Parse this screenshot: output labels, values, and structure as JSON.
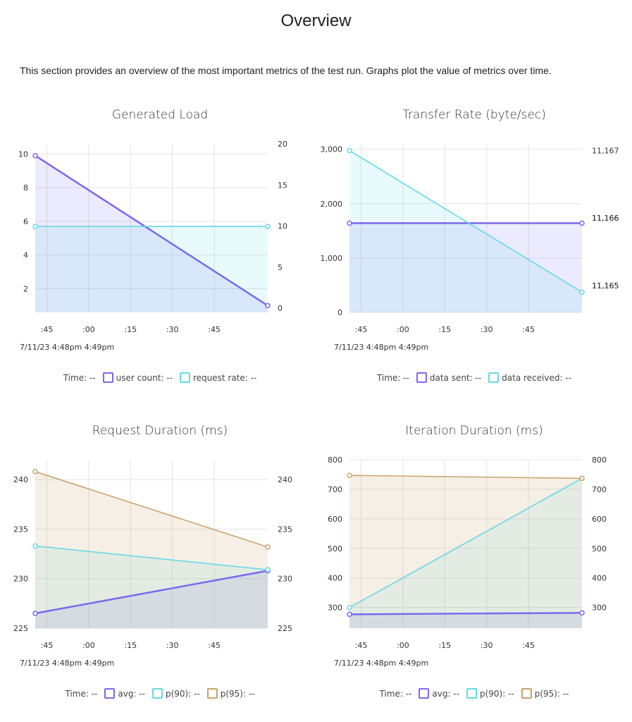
{
  "page": {
    "title": "Overview",
    "description": "This section provides an overview of the most important metrics of the test run. Graphs plot the value of metrics over time."
  },
  "legend_value_placeholder": "--",
  "colors": {
    "purple": "#7b68ee",
    "cyan": "#66d9e8",
    "tan": "#c8a46e",
    "grid": "#e3e3e3"
  },
  "chart_data": [
    {
      "id": "generated-load",
      "type": "line",
      "title": "Generated Load",
      "x_ticks": [
        ":45",
        ":00",
        ":15",
        ":30",
        ":45"
      ],
      "date_label": "7/11/23 4:48pm  4:49pm",
      "y_left": {
        "ticks": [
          "2",
          "4",
          "6",
          "8",
          "10"
        ],
        "lim": [
          0.6,
          10.6
        ]
      },
      "y_right": {
        "ticks": [
          "0",
          "5",
          "10",
          "15",
          "20"
        ],
        "lim": [
          -0.5,
          20
        ]
      },
      "legend": [
        {
          "label": "Time:",
          "swatch": null
        },
        {
          "label": "user count:",
          "swatch": "purple"
        },
        {
          "label": "request rate:",
          "swatch": "cyan"
        }
      ],
      "series": [
        {
          "name": "user count",
          "axis": "left",
          "color": "purple",
          "values": [
            9.9,
            1.0
          ]
        },
        {
          "name": "request rate",
          "axis": "right",
          "color": "cyan",
          "values": [
            9.95,
            9.95
          ]
        }
      ]
    },
    {
      "id": "transfer-rate",
      "type": "line",
      "title": "Transfer Rate (byte/sec)",
      "x_ticks": [
        ":45",
        ":00",
        ":15",
        ":30",
        ":45"
      ],
      "date_label": "7/11/23 4:48pm  4:49pm",
      "y_left": {
        "ticks": [
          "0",
          "1,000",
          "2,000",
          "3,000"
        ],
        "lim": [
          0,
          3100
        ]
      },
      "y_right": {
        "ticks": [
          "11,165",
          "11,165",
          "11,166",
          "11,166",
          "11,167"
        ],
        "lim": [
          11164.6,
          11167.1
        ]
      },
      "legend": [
        {
          "label": "Time:",
          "swatch": null
        },
        {
          "label": "data sent:",
          "swatch": "purple"
        },
        {
          "label": "data received:",
          "swatch": "cyan"
        }
      ],
      "series": [
        {
          "name": "data sent",
          "axis": "left",
          "color": "purple",
          "values": [
            1640,
            1640
          ]
        },
        {
          "name": "data received",
          "axis": "right",
          "color": "cyan",
          "values": [
            11167,
            11164.9
          ]
        }
      ]
    },
    {
      "id": "request-duration",
      "type": "line",
      "title": "Request Duration (ms)",
      "x_ticks": [
        ":45",
        ":00",
        ":15",
        ":30",
        ":45"
      ],
      "date_label": "7/11/23 4:48pm  4:49pm",
      "y_left": {
        "ticks": [
          "225",
          "230",
          "235",
          "240"
        ],
        "lim": [
          225,
          242
        ]
      },
      "y_right": {
        "ticks": [
          "225",
          "230",
          "235",
          "240"
        ],
        "lim": [
          225,
          242
        ]
      },
      "legend": [
        {
          "label": "Time:",
          "swatch": null
        },
        {
          "label": "avg:",
          "swatch": "purple"
        },
        {
          "label": "p(90):",
          "swatch": "cyan"
        },
        {
          "label": "p(95):",
          "swatch": "tan"
        }
      ],
      "series": [
        {
          "name": "avg",
          "axis": "left",
          "color": "purple",
          "values": [
            226.5,
            230.8
          ]
        },
        {
          "name": "p(90)",
          "axis": "left",
          "color": "cyan",
          "values": [
            233.3,
            230.9
          ]
        },
        {
          "name": "p(95)",
          "axis": "left",
          "color": "tan",
          "values": [
            240.8,
            233.2
          ]
        }
      ]
    },
    {
      "id": "iteration-duration",
      "type": "line",
      "title": "Iteration Duration (ms)",
      "x_ticks": [
        ":45",
        ":00",
        ":15",
        ":30",
        ":45"
      ],
      "date_label": "7/11/23 4:48pm  4:49pm",
      "y_left": {
        "ticks": [
          "300",
          "400",
          "500",
          "600",
          "700",
          "800"
        ],
        "lim": [
          230,
          800
        ]
      },
      "y_right": {
        "ticks": [
          "300",
          "400",
          "500",
          "600",
          "700",
          "800"
        ],
        "lim": [
          230,
          800
        ]
      },
      "legend": [
        {
          "label": "Time:",
          "swatch": null
        },
        {
          "label": "avg:",
          "swatch": "purple"
        },
        {
          "label": "p(90):",
          "swatch": "cyan"
        },
        {
          "label": "p(95):",
          "swatch": "tan"
        }
      ],
      "series": [
        {
          "name": "avg",
          "axis": "left",
          "color": "purple",
          "values": [
            277,
            282
          ]
        },
        {
          "name": "p(90)",
          "axis": "left",
          "color": "cyan",
          "values": [
            300,
            737
          ]
        },
        {
          "name": "p(95)",
          "axis": "left",
          "color": "tan",
          "values": [
            747,
            737
          ]
        }
      ]
    }
  ]
}
